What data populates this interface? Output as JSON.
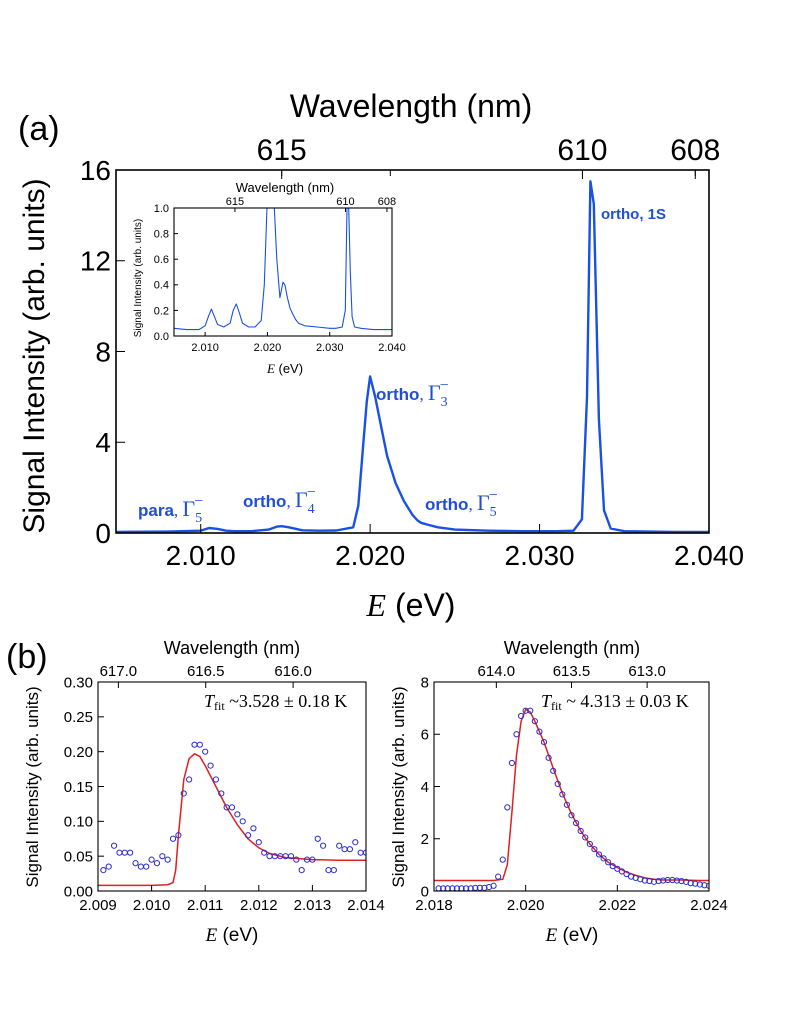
{
  "colors": {
    "main_line": "#1a50e6",
    "fit_line": "#e02020",
    "points": "#2a2ad0",
    "axis": "#000000",
    "background": "#ffffff"
  },
  "panel_a": {
    "label": "(a)",
    "top_axis_title": "Wavelength (nm)",
    "y_axis_title": "Signal Intensity (arb. units)",
    "x_axis_title_italic": "E",
    "x_axis_title_rest": " (eV)",
    "annotations": [
      {
        "id": "para5",
        "bold": "para",
        "greek": "Γ",
        "sub": "5",
        "sup": "−"
      },
      {
        "id": "ortho4",
        "bold": "ortho",
        "greek": "Γ",
        "sub": "4",
        "sup": "−"
      },
      {
        "id": "ortho3",
        "bold": "ortho",
        "greek": "Γ",
        "sub": "3",
        "sup": "−"
      },
      {
        "id": "ortho5",
        "bold": "ortho",
        "greek": "Γ",
        "sub": "5",
        "sup": "−"
      },
      {
        "id": "ortho1s",
        "text": "ortho, 1S"
      }
    ],
    "inset": {
      "top_axis_title": "Wavelength (nm)",
      "y_axis_title": "Signal Intensity (arb. units)",
      "x_axis_title_italic": "E",
      "x_axis_title_rest": " (eV)"
    }
  },
  "panel_b": {
    "label": "(b)",
    "left": {
      "top_axis_title": "Wavelength (nm)",
      "y_axis_title": "Signal Intensity (arb. units)",
      "x_axis_title_italic": "E",
      "x_axis_title_rest": " (eV)",
      "fit_T": "T",
      "fit_sub": "fit",
      "fit_text": " ~3.528 ± 0.18 K"
    },
    "right": {
      "top_axis_title": "Wavelength (nm)",
      "y_axis_title": "Signal Intensity (arb. units)",
      "x_axis_title_italic": "E",
      "x_axis_title_rest": " (eV)",
      "fit_T": "T",
      "fit_sub": "fit",
      "fit_text": " ~ 4.313 ± 0.03 K"
    }
  },
  "chart_data": [
    {
      "id": "main",
      "type": "line",
      "xlim": [
        2.005,
        2.04
      ],
      "ylim": [
        0,
        16
      ],
      "x_ticks": [
        2.01,
        2.02,
        2.03,
        2.04
      ],
      "x_tick_labels": [
        "2.010",
        "2.020",
        "2.030",
        "2.040"
      ],
      "y_ticks": [
        0,
        4,
        8,
        12,
        16
      ],
      "y_tick_labels": [
        "0",
        "4",
        "8",
        "12",
        "16"
      ],
      "top_ticks_ev": [
        2.01478,
        2.02119,
        2.03253,
        2.03919
      ],
      "top_tick_labels": [
        "615",
        "610",
        "608"
      ],
      "top_tick_labels_ev": [
        2.01478,
        2.03253,
        2.03919
      ],
      "series": [
        {
          "x": [
            2.005,
            2.008,
            2.01,
            2.0105,
            2.011,
            2.0115,
            2.012,
            2.013,
            2.014,
            2.0145,
            2.0148,
            2.0152,
            2.016,
            2.017,
            2.018,
            2.019,
            2.0193,
            2.0196,
            2.0198,
            2.02,
            2.0203,
            2.0207,
            2.021,
            2.0215,
            2.022,
            2.0225,
            2.0228,
            2.023,
            2.0235,
            2.024,
            2.025,
            2.027,
            2.029,
            2.031,
            2.032,
            2.0325,
            2.0328,
            2.033,
            2.0332,
            2.0335,
            2.0338,
            2.0342,
            2.035,
            2.038,
            2.04
          ],
          "y": [
            0.05,
            0.06,
            0.1,
            0.22,
            0.18,
            0.1,
            0.08,
            0.08,
            0.15,
            0.28,
            0.3,
            0.25,
            0.12,
            0.1,
            0.11,
            0.25,
            1.2,
            4.0,
            5.8,
            6.9,
            6.0,
            4.5,
            3.4,
            2.2,
            1.4,
            0.8,
            0.55,
            0.45,
            0.35,
            0.25,
            0.15,
            0.1,
            0.08,
            0.08,
            0.1,
            0.6,
            6.0,
            15.5,
            14.5,
            5.0,
            1.0,
            0.2,
            0.08,
            0.05,
            0.05
          ]
        }
      ]
    },
    {
      "id": "inset",
      "type": "line",
      "xlim": [
        2.005,
        2.04
      ],
      "ylim": [
        0,
        1.0
      ],
      "x_ticks": [
        2.01,
        2.02,
        2.03,
        2.04
      ],
      "x_tick_labels": [
        "2.010",
        "2.020",
        "2.030",
        "2.040"
      ],
      "y_ticks": [
        0,
        0.2,
        0.4,
        0.6,
        0.8,
        1.0
      ],
      "y_tick_labels": [
        "0.0",
        "0.2",
        "0.4",
        "0.6",
        "0.8",
        "1.0"
      ],
      "top_tick_labels": [
        "615",
        "610",
        "608"
      ],
      "top_tick_labels_ev": [
        2.01478,
        2.03253,
        2.03919
      ],
      "series": [
        {
          "x": [
            2.005,
            2.007,
            2.009,
            2.01,
            2.0105,
            2.011,
            2.0115,
            2.012,
            2.013,
            2.014,
            2.0145,
            2.015,
            2.0155,
            2.016,
            2.017,
            2.018,
            2.019,
            2.0195,
            2.02,
            2.0205,
            2.021,
            2.0215,
            2.022,
            2.0225,
            2.0228,
            2.0232,
            2.0236,
            2.024,
            2.0245,
            2.025,
            2.026,
            2.028,
            2.03,
            2.031,
            2.032,
            2.0325,
            2.0328,
            2.033,
            2.0333,
            2.0336,
            2.034,
            2.035,
            2.037,
            2.04
          ],
          "y": [
            0.06,
            0.05,
            0.05,
            0.08,
            0.15,
            0.21,
            0.15,
            0.09,
            0.07,
            0.1,
            0.2,
            0.25,
            0.18,
            0.1,
            0.07,
            0.07,
            0.12,
            0.4,
            1.1,
            1.1,
            1.1,
            0.6,
            0.3,
            0.42,
            0.4,
            0.3,
            0.22,
            0.18,
            0.13,
            0.1,
            0.08,
            0.07,
            0.06,
            0.06,
            0.07,
            0.2,
            1.1,
            1.1,
            0.5,
            0.15,
            0.07,
            0.06,
            0.05,
            0.05
          ]
        }
      ]
    },
    {
      "id": "b_left",
      "type": "scatter",
      "xlim": [
        2.009,
        2.014
      ],
      "ylim": [
        0,
        0.3
      ],
      "x_ticks": [
        2.009,
        2.01,
        2.011,
        2.012,
        2.013,
        2.014
      ],
      "x_tick_labels": [
        "2.009",
        "2.010",
        "2.011",
        "2.012",
        "2.013",
        "2.014"
      ],
      "y_ticks": [
        0,
        0.05,
        0.1,
        0.15,
        0.2,
        0.25,
        0.3
      ],
      "y_tick_labels": [
        "0.00",
        "0.05",
        "0.10",
        "0.15",
        "0.20",
        "0.25",
        "0.30"
      ],
      "top_tick_labels": [
        "617.0",
        "616.5",
        "616.0"
      ],
      "top_tick_labels_ev": [
        2.00938,
        2.01101,
        2.01264
      ],
      "series": [
        {
          "name": "data",
          "x": [
            2.0091,
            2.0092,
            2.0093,
            2.0094,
            2.0095,
            2.0096,
            2.0097,
            2.0098,
            2.0099,
            2.01,
            2.0101,
            2.0102,
            2.0103,
            2.0104,
            2.0105,
            2.0106,
            2.0107,
            2.0108,
            2.0109,
            2.011,
            2.0111,
            2.0112,
            2.0113,
            2.0114,
            2.0115,
            2.0116,
            2.0117,
            2.0118,
            2.0119,
            2.012,
            2.0121,
            2.0122,
            2.0123,
            2.0124,
            2.0125,
            2.0126,
            2.0127,
            2.0128,
            2.0129,
            2.013,
            2.0131,
            2.0132,
            2.0133,
            2.0134,
            2.0135,
            2.0136,
            2.0137,
            2.0138,
            2.0139,
            2.014
          ],
          "y": [
            0.03,
            0.035,
            0.065,
            0.055,
            0.055,
            0.055,
            0.04,
            0.035,
            0.035,
            0.045,
            0.04,
            0.05,
            0.045,
            0.075,
            0.08,
            0.14,
            0.16,
            0.21,
            0.21,
            0.2,
            0.18,
            0.16,
            0.14,
            0.12,
            0.12,
            0.11,
            0.1,
            0.08,
            0.09,
            0.07,
            0.055,
            0.05,
            0.05,
            0.05,
            0.05,
            0.05,
            0.045,
            0.03,
            0.045,
            0.045,
            0.075,
            0.065,
            0.03,
            0.03,
            0.065,
            0.06,
            0.06,
            0.07,
            0.055,
            0.055
          ]
        },
        {
          "name": "fit",
          "x": [
            2.009,
            2.01,
            2.0103,
            2.0104,
            2.01045,
            2.0105,
            2.01055,
            2.0106,
            2.0107,
            2.0108,
            2.0109,
            2.011,
            2.0112,
            2.0114,
            2.0116,
            2.0118,
            2.012,
            2.0122,
            2.0125,
            2.013,
            2.0135,
            2.014
          ],
          "y": [
            0.008,
            0.008,
            0.009,
            0.012,
            0.03,
            0.08,
            0.12,
            0.16,
            0.19,
            0.197,
            0.193,
            0.18,
            0.15,
            0.12,
            0.095,
            0.075,
            0.062,
            0.054,
            0.048,
            0.045,
            0.044,
            0.044
          ]
        }
      ]
    },
    {
      "id": "b_right",
      "type": "scatter",
      "xlim": [
        2.018,
        2.024
      ],
      "ylim": [
        0,
        8
      ],
      "x_ticks": [
        2.018,
        2.02,
        2.022,
        2.024
      ],
      "x_tick_labels": [
        "2.018",
        "2.020",
        "2.022",
        "2.024"
      ],
      "y_ticks": [
        0,
        2,
        4,
        6,
        8
      ],
      "y_tick_labels": [
        "0",
        "2",
        "4",
        "6",
        "8"
      ],
      "top_tick_labels": [
        "614.0",
        "613.5",
        "613.0"
      ],
      "top_tick_labels_ev": [
        2.01936,
        2.021,
        2.02265
      ],
      "series": [
        {
          "name": "data",
          "x": [
            2.0181,
            2.0182,
            2.0183,
            2.0184,
            2.0185,
            2.0186,
            2.0187,
            2.0188,
            2.0189,
            2.019,
            2.0191,
            2.0192,
            2.0193,
            2.0194,
            2.0195,
            2.0196,
            2.0197,
            2.0198,
            2.0199,
            2.02,
            2.0201,
            2.0202,
            2.0203,
            2.0204,
            2.0205,
            2.0206,
            2.0207,
            2.0208,
            2.0209,
            2.021,
            2.0211,
            2.0212,
            2.0213,
            2.0214,
            2.0215,
            2.0216,
            2.0217,
            2.0218,
            2.0219,
            2.022,
            2.0221,
            2.0222,
            2.0223,
            2.0224,
            2.0225,
            2.0226,
            2.0227,
            2.0228,
            2.0229,
            2.023,
            2.0231,
            2.0232,
            2.0233,
            2.0234,
            2.0235,
            2.0236,
            2.0237,
            2.0238,
            2.0239,
            2.024
          ],
          "y": [
            0.1,
            0.1,
            0.1,
            0.1,
            0.1,
            0.1,
            0.1,
            0.1,
            0.12,
            0.12,
            0.12,
            0.15,
            0.2,
            0.55,
            1.2,
            3.2,
            4.9,
            6.0,
            6.7,
            6.9,
            6.9,
            6.5,
            6.1,
            5.7,
            5.1,
            4.6,
            4.1,
            3.7,
            3.3,
            2.9,
            2.6,
            2.3,
            2.05,
            1.8,
            1.6,
            1.4,
            1.25,
            1.1,
            0.95,
            0.85,
            0.75,
            0.65,
            0.55,
            0.5,
            0.45,
            0.4,
            0.38,
            0.35,
            0.38,
            0.4,
            0.42,
            0.42,
            0.4,
            0.38,
            0.35,
            0.3,
            0.28,
            0.25,
            0.22,
            0.2
          ]
        },
        {
          "name": "fit",
          "x": [
            2.018,
            2.019,
            2.0193,
            2.0195,
            2.0196,
            2.0197,
            2.0198,
            2.0199,
            2.02,
            2.0201,
            2.0202,
            2.0204,
            2.0206,
            2.0208,
            2.021,
            2.0212,
            2.0214,
            2.0216,
            2.0218,
            2.022,
            2.0222,
            2.0224,
            2.0226,
            2.0228,
            2.023,
            2.0232,
            2.0234,
            2.0236,
            2.0238,
            2.024
          ],
          "y": [
            0.4,
            0.4,
            0.4,
            0.45,
            1.0,
            3.0,
            5.2,
            6.5,
            6.95,
            6.85,
            6.5,
            5.7,
            4.7,
            3.75,
            2.95,
            2.3,
            1.8,
            1.4,
            1.1,
            0.9,
            0.72,
            0.6,
            0.5,
            0.45,
            0.42,
            0.42,
            0.42,
            0.41,
            0.4,
            0.4
          ]
        }
      ]
    }
  ]
}
